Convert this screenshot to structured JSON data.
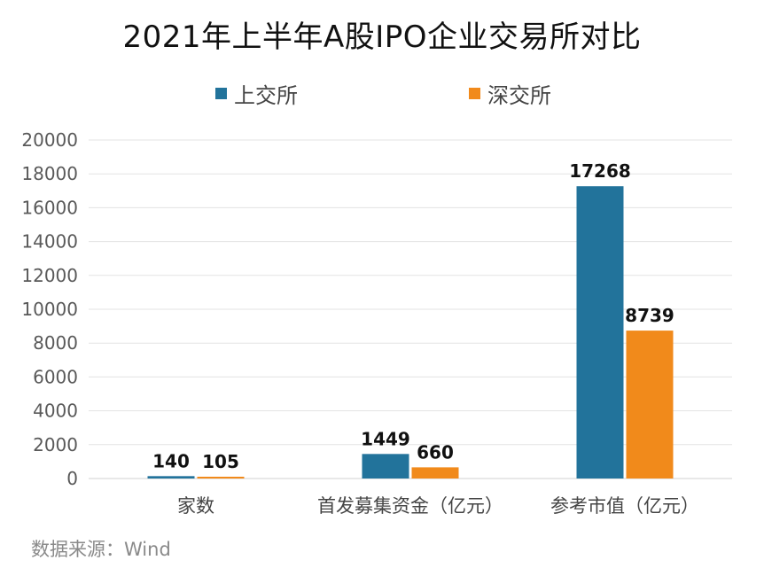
{
  "chart_data": {
    "type": "bar",
    "title": "2021年上半年A股IPO企业交易所对比",
    "categories": [
      "家数",
      "首发募集资金（亿元）",
      "参考市值（亿元）"
    ],
    "series": [
      {
        "name": "上交所",
        "color": "#22739b",
        "values": [
          140,
          1449,
          17268
        ]
      },
      {
        "name": "深交所",
        "color": "#f18a1b",
        "values": [
          105,
          660,
          8739
        ]
      }
    ],
    "ylim": [
      0,
      20000
    ],
    "yticks": [
      0,
      2000,
      4000,
      6000,
      8000,
      10000,
      12000,
      14000,
      16000,
      18000,
      20000
    ],
    "xlabel": "",
    "ylabel": "",
    "grid": true,
    "legend": "top-center",
    "source": "数据来源：Wind"
  }
}
